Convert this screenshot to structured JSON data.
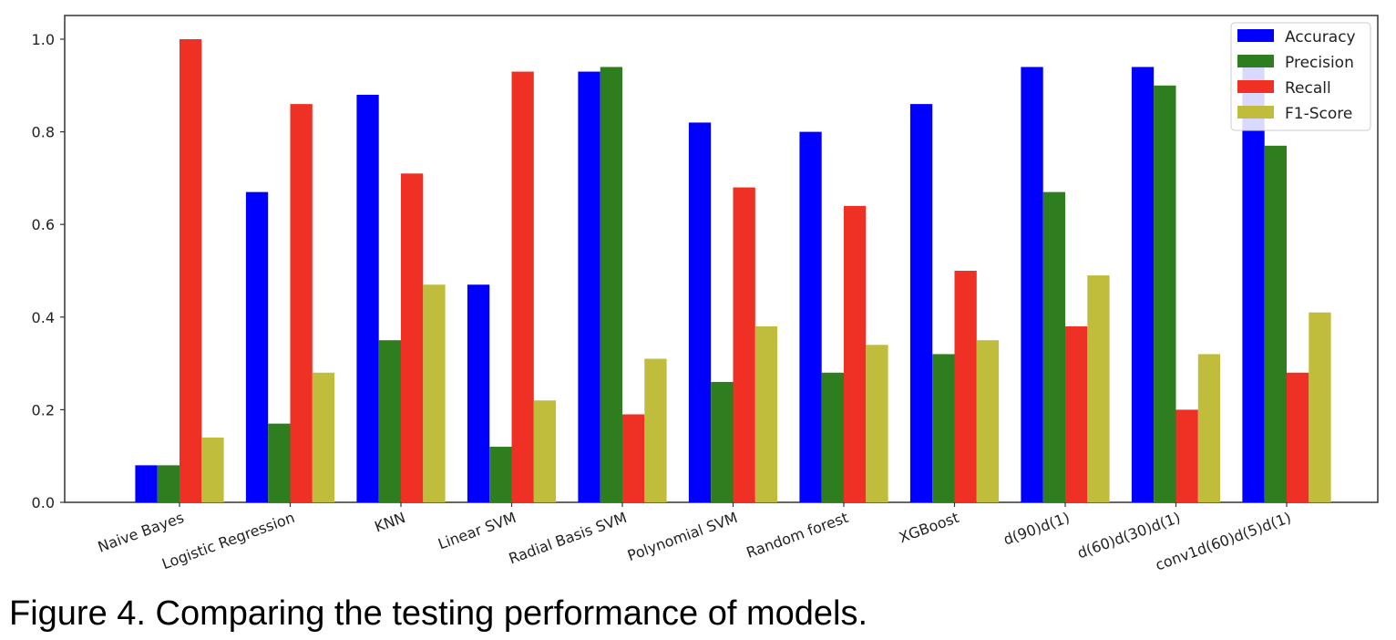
{
  "caption": "Figure 4. Comparing the testing performance of models.",
  "chart_data": {
    "type": "bar",
    "title": "",
    "xlabel": "",
    "ylabel": "",
    "ylim": [
      0,
      1.05
    ],
    "yticks": [
      "0.0",
      "0.2",
      "0.4",
      "0.6",
      "0.8",
      "1.0"
    ],
    "grid": false,
    "legend_position": "top-right",
    "categories": [
      "Naive Bayes",
      "Logistic Regression",
      "KNN",
      "Linear SVM",
      "Radial Basis SVM",
      "Polynomial SVM",
      "Random forest",
      "XGBoost",
      "d(90)d(1)",
      "d(60)d(30)d(1)",
      "conv1d(60)d(5)d(1)"
    ],
    "series": [
      {
        "name": "Accuracy",
        "color": "#0000ff",
        "values": [
          0.08,
          0.67,
          0.88,
          0.47,
          0.93,
          0.82,
          0.8,
          0.86,
          0.94,
          0.94,
          0.94
        ]
      },
      {
        "name": "Precision",
        "color": "#2e7d1e",
        "values": [
          0.08,
          0.17,
          0.35,
          0.12,
          0.94,
          0.26,
          0.28,
          0.32,
          0.67,
          0.9,
          0.77
        ]
      },
      {
        "name": "Recall",
        "color": "#ee3124",
        "values": [
          1.0,
          0.86,
          0.71,
          0.93,
          0.19,
          0.68,
          0.64,
          0.5,
          0.38,
          0.2,
          0.28
        ]
      },
      {
        "name": "F1-Score",
        "color": "#c0bc3c",
        "values": [
          0.14,
          0.28,
          0.47,
          0.22,
          0.31,
          0.38,
          0.34,
          0.35,
          0.49,
          0.32,
          0.41
        ]
      }
    ]
  }
}
